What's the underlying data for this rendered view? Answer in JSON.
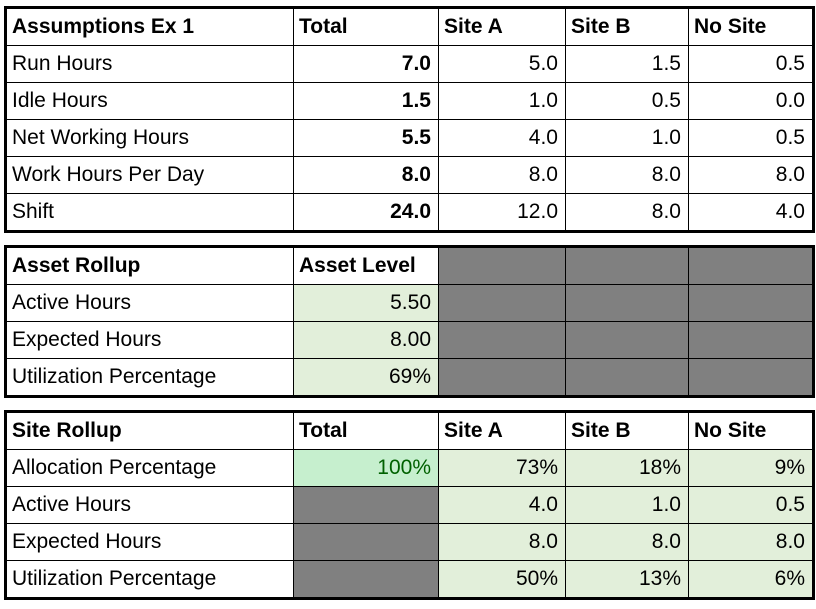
{
  "colors": {
    "grid_border": "#000000",
    "blocked_cell_gray": "#808080",
    "calculated_cell_green": "#E2EFDA",
    "highlight_cell_mint": "#C6EFCE",
    "highlight_text_green": "#006100"
  },
  "assumptions_table": {
    "title": "Assumptions Ex 1",
    "headers": {
      "total": "Total",
      "site_a": "Site A",
      "site_b": "Site B",
      "no_site": "No Site"
    },
    "rows": [
      {
        "label": "Run Hours",
        "total": "7.0",
        "site_a": "5.0",
        "site_b": "1.5",
        "no_site": "0.5"
      },
      {
        "label": "Idle Hours",
        "total": "1.5",
        "site_a": "1.0",
        "site_b": "0.5",
        "no_site": "0.0"
      },
      {
        "label": "Net Working Hours",
        "total": "5.5",
        "site_a": "4.0",
        "site_b": "1.0",
        "no_site": "0.5"
      },
      {
        "label": "Work Hours Per Day",
        "total": "8.0",
        "site_a": "8.0",
        "site_b": "8.0",
        "no_site": "8.0"
      },
      {
        "label": "Shift",
        "total": "24.0",
        "site_a": "12.0",
        "site_b": "8.0",
        "no_site": "4.0"
      }
    ]
  },
  "asset_rollup_table": {
    "title": "Asset Rollup",
    "headers": {
      "asset_level": "Asset Level"
    },
    "rows": [
      {
        "label": "Active Hours",
        "value": "5.50"
      },
      {
        "label": "Expected Hours",
        "value": "8.00"
      },
      {
        "label": "Utilization Percentage",
        "value": "69%"
      }
    ]
  },
  "site_rollup_table": {
    "title": "Site Rollup",
    "headers": {
      "total": "Total",
      "site_a": "Site A",
      "site_b": "Site B",
      "no_site": "No Site"
    },
    "rows": [
      {
        "label": "Allocation Percentage",
        "total": "100%",
        "site_a": "73%",
        "site_b": "18%",
        "no_site": "9%"
      },
      {
        "label": "Active Hours",
        "total": "",
        "site_a": "4.0",
        "site_b": "1.0",
        "no_site": "0.5"
      },
      {
        "label": "Expected Hours",
        "total": "",
        "site_a": "8.0",
        "site_b": "8.0",
        "no_site": "8.0"
      },
      {
        "label": "Utilization Percentage",
        "total": "",
        "site_a": "50%",
        "site_b": "13%",
        "no_site": "6%"
      }
    ]
  }
}
